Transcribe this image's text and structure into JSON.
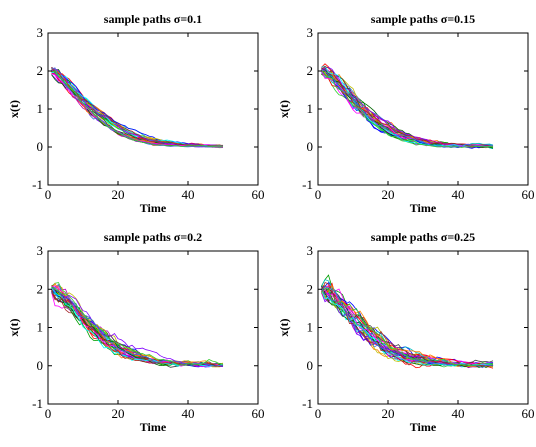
{
  "chart_data": [
    {
      "type": "line",
      "title": "sample paths σ=0.1",
      "xlabel": "Time",
      "ylabel": "x(t)",
      "xlim": [
        0,
        60
      ],
      "ylim": [
        -1,
        3
      ],
      "xticks": [
        "0",
        "20",
        "40",
        "60"
      ],
      "yticks": [
        "-1",
        "0",
        "1",
        "2",
        "3"
      ],
      "sigma": 0.1,
      "x_range": [
        1,
        50
      ],
      "start_value": 2,
      "n_paths": 30,
      "mean_path": {
        "x": [
          1,
          5,
          10,
          15,
          20,
          25,
          30,
          35,
          40,
          45,
          50
        ],
        "y": [
          2.0,
          1.45,
          0.9,
          0.55,
          0.3,
          0.15,
          0.08,
          0.04,
          0.03,
          0.02,
          0.01
        ]
      }
    },
    {
      "type": "line",
      "title": "sample paths σ=0.15",
      "xlabel": "Time",
      "ylabel": "x(t)",
      "xlim": [
        0,
        60
      ],
      "ylim": [
        -1,
        3
      ],
      "xticks": [
        "0",
        "20",
        "40",
        "60"
      ],
      "yticks": [
        "-1",
        "0",
        "1",
        "2",
        "3"
      ],
      "sigma": 0.15,
      "x_range": [
        1,
        50
      ],
      "start_value": 2,
      "n_paths": 30,
      "mean_path": {
        "x": [
          1,
          5,
          10,
          15,
          20,
          25,
          30,
          35,
          40,
          45,
          50
        ],
        "y": [
          2.0,
          1.45,
          0.9,
          0.55,
          0.3,
          0.15,
          0.08,
          0.04,
          0.03,
          0.02,
          0.01
        ]
      }
    },
    {
      "type": "line",
      "title": "sample paths σ=0.2",
      "xlabel": "Time",
      "ylabel": "x(t)",
      "xlim": [
        0,
        60
      ],
      "ylim": [
        -1,
        3
      ],
      "xticks": [
        "0",
        "20",
        "40",
        "60"
      ],
      "yticks": [
        "-1",
        "0",
        "1",
        "2",
        "3"
      ],
      "sigma": 0.2,
      "x_range": [
        1,
        50
      ],
      "start_value": 2,
      "n_paths": 30,
      "mean_path": {
        "x": [
          1,
          5,
          10,
          15,
          20,
          25,
          30,
          35,
          40,
          45,
          50
        ],
        "y": [
          2.0,
          1.45,
          0.9,
          0.55,
          0.3,
          0.15,
          0.08,
          0.04,
          0.03,
          0.02,
          0.01
        ]
      }
    },
    {
      "type": "line",
      "title": "sample paths σ=0.25",
      "xlabel": "Time",
      "ylabel": "x(t)",
      "xlim": [
        0,
        60
      ],
      "ylim": [
        -1,
        3
      ],
      "xticks": [
        "0",
        "20",
        "40",
        "60"
      ],
      "yticks": [
        "-1",
        "0",
        "1",
        "2",
        "3"
      ],
      "sigma": 0.25,
      "x_range": [
        1,
        50
      ],
      "start_value": 2,
      "n_paths": 30,
      "mean_path": {
        "x": [
          1,
          5,
          10,
          15,
          20,
          25,
          30,
          35,
          40,
          45,
          50
        ],
        "y": [
          2.0,
          1.45,
          0.9,
          0.55,
          0.3,
          0.15,
          0.08,
          0.04,
          0.03,
          0.02,
          0.01
        ]
      }
    }
  ],
  "path_colors": [
    "#0000ff",
    "#00a000",
    "#ff0000",
    "#00bfbf",
    "#bf00bf",
    "#bfbf00",
    "#404040",
    "#ff8000",
    "#8000ff",
    "#006400",
    "#ff00ff",
    "#00ffff",
    "#a52a2a",
    "#4169e1",
    "#32cd32"
  ]
}
